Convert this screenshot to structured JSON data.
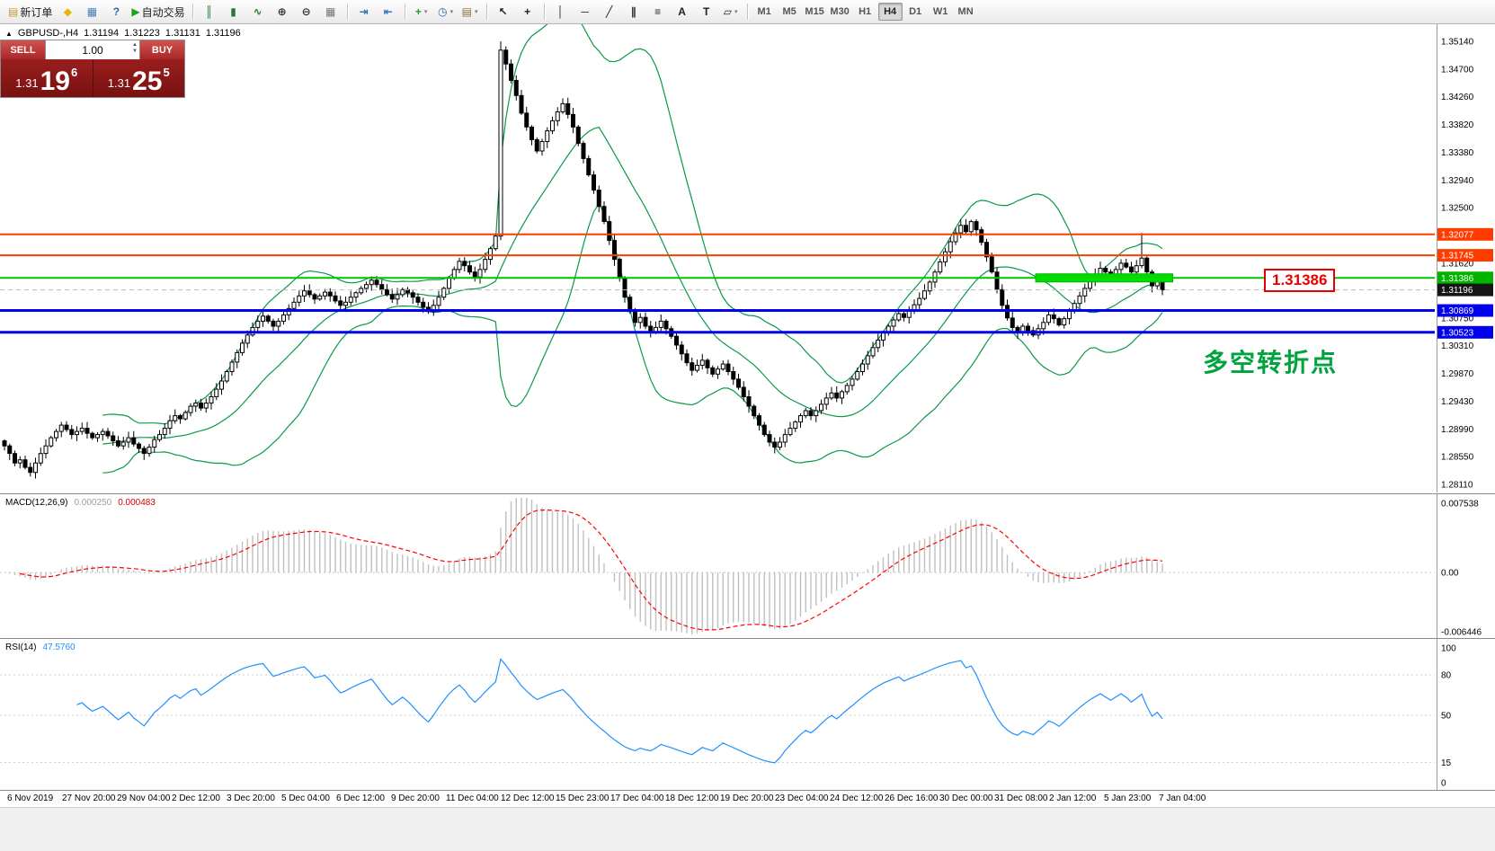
{
  "toolbar": {
    "groups": [
      {
        "items": [
          {
            "name": "new-order-button",
            "glyph": "▤",
            "color": "#c79a2e",
            "label": "新订单"
          },
          {
            "name": "metaeditor-icon",
            "glyph": "◆",
            "color": "#eab308"
          },
          {
            "name": "market-watch-icon",
            "glyph": "▦",
            "color": "#4a7ebb"
          },
          {
            "name": "help-icon",
            "glyph": "?",
            "color": "#2b6cb0"
          },
          {
            "name": "autotrading-button",
            "glyph": "▶",
            "color": "#1fa11f",
            "label": "自动交易"
          }
        ]
      },
      {
        "items": [
          {
            "name": "ohlc-bars-icon",
            "glyph": "║",
            "color": "#1f7a33"
          },
          {
            "name": "candlestick-chart-icon",
            "glyph": "▮",
            "color": "#1f7a33"
          },
          {
            "name": "line-chart-icon",
            "glyph": "∿",
            "color": "#1f7a33"
          },
          {
            "name": "zoom-in-icon",
            "glyph": "⊕",
            "color": "#333333"
          },
          {
            "name": "zoom-out-icon",
            "glyph": "⊖",
            "color": "#333333"
          },
          {
            "name": "tile-windows-icon",
            "glyph": "▦",
            "color": "#777777"
          }
        ]
      },
      {
        "items": [
          {
            "name": "auto-scroll-icon",
            "glyph": "⇥",
            "color": "#2b6cb0"
          },
          {
            "name": "chart-shift-icon",
            "glyph": "⇤",
            "color": "#2b6cb0"
          }
        ]
      },
      {
        "items": [
          {
            "name": "indicators-icon",
            "glyph": "+",
            "color": "#1fa11f",
            "dd": true
          },
          {
            "name": "periods-icon",
            "glyph": "◷",
            "color": "#2b6cb0",
            "dd": true
          },
          {
            "name": "templates-icon",
            "glyph": "▤",
            "color": "#8a6d3b",
            "dd": true
          }
        ]
      },
      {
        "items": [
          {
            "name": "cursor-icon",
            "glyph": "↖",
            "color": "#222222"
          },
          {
            "name": "crosshair-icon",
            "glyph": "+",
            "color": "#222222"
          }
        ]
      },
      {
        "items": [
          {
            "name": "vertical-line-icon",
            "glyph": "│",
            "color": "#222222"
          },
          {
            "name": "horizontal-line-icon",
            "glyph": "─",
            "color": "#222222"
          },
          {
            "name": "trendline-icon",
            "glyph": "╱",
            "color": "#222222"
          },
          {
            "name": "channel-icon",
            "glyph": "∥",
            "color": "#222222"
          },
          {
            "name": "fibonacci-icon",
            "glyph": "≡",
            "color": "#222222"
          },
          {
            "name": "text-tool-icon",
            "glyph": "A",
            "color": "#222222"
          },
          {
            "name": "label-tool-icon",
            "glyph": "T",
            "color": "#222222"
          },
          {
            "name": "shapes-icon",
            "glyph": "▱",
            "color": "#222222",
            "dd": true
          }
        ]
      }
    ],
    "timeframes": {
      "list": [
        "M1",
        "M5",
        "M15",
        "M30",
        "H1",
        "H4",
        "D1",
        "W1",
        "MN"
      ],
      "active": "H4"
    }
  },
  "symbol_header": {
    "toggle": "▲",
    "symbol": "GBPUSD-,H4",
    "open": "1.31194",
    "high": "1.31223",
    "low": "1.31131",
    "close": "1.31196"
  },
  "trade_panel": {
    "sell_label": "SELL",
    "buy_label": "BUY",
    "volume": "1.00",
    "sell": {
      "prefix": "1.31",
      "big": "19",
      "sup": "6"
    },
    "buy": {
      "prefix": "1.31",
      "big": "25",
      "sup": "5"
    }
  },
  "macd_panel": {
    "title": "MACD(12,26,9)",
    "value_main": "0.000250",
    "value_signal": "0.000483"
  },
  "rsi_panel": {
    "title": "RSI(14)",
    "value": "47.5760"
  },
  "annotation": {
    "text": "多空转折点",
    "color": "#00a33e"
  },
  "price_callout": {
    "text": "1.31386"
  },
  "chart_data": {
    "type": "candlestick",
    "symbol": "GBPUSD",
    "timeframe": "H4",
    "current_price": 1.31196,
    "open_first": 1.288,
    "closes": [
      1.2872,
      1.286,
      1.2845,
      1.285,
      1.2838,
      1.283,
      1.2845,
      1.286,
      1.2872,
      1.2885,
      1.2895,
      1.2905,
      1.2898,
      1.289,
      1.2895,
      1.29,
      1.2892,
      1.2885,
      1.289,
      1.2895,
      1.2888,
      1.288,
      1.2872,
      1.2878,
      1.2885,
      1.2875,
      1.2868,
      1.286,
      1.287,
      1.2882,
      1.289,
      1.29,
      1.2912,
      1.292,
      1.2915,
      1.2925,
      1.2935,
      1.294,
      1.2932,
      1.294,
      1.295,
      1.2962,
      1.2975,
      1.299,
      1.3005,
      1.302,
      1.3035,
      1.3048,
      1.306,
      1.307,
      1.3078,
      1.307,
      1.3062,
      1.307,
      1.308,
      1.309,
      1.31,
      1.311,
      1.3118,
      1.3112,
      1.3105,
      1.311,
      1.3116,
      1.311,
      1.3102,
      1.3095,
      1.31,
      1.3108,
      1.3115,
      1.3122,
      1.3128,
      1.3135,
      1.3128,
      1.312,
      1.3112,
      1.3105,
      1.3112,
      1.312,
      1.3115,
      1.3108,
      1.31,
      1.3092,
      1.3085,
      1.3095,
      1.3108,
      1.3122,
      1.3138,
      1.3152,
      1.3165,
      1.3158,
      1.3148,
      1.314,
      1.3152,
      1.3168,
      1.3185,
      1.3205,
      1.35,
      1.3478,
      1.3452,
      1.3428,
      1.34,
      1.3378,
      1.3358,
      1.334,
      1.3355,
      1.3372,
      1.3388,
      1.3402,
      1.3415,
      1.3398,
      1.3378,
      1.3352,
      1.3328,
      1.3302,
      1.3278,
      1.3252,
      1.3228,
      1.3198,
      1.3168,
      1.3138,
      1.3108,
      1.3085,
      1.3068,
      1.3076,
      1.3062,
      1.3052,
      1.306,
      1.307,
      1.3058,
      1.3046,
      1.3032,
      1.3018,
      1.3004,
      1.2992,
      1.3,
      1.3008,
      1.2996,
      1.2986,
      1.2994,
      1.3002,
      1.299,
      1.2978,
      1.2965,
      1.295,
      1.2935,
      1.292,
      1.2905,
      1.289,
      1.2878,
      1.287,
      1.2878,
      1.289,
      1.29,
      1.291,
      1.292,
      1.2928,
      1.292,
      1.2928,
      1.2938,
      1.2948,
      1.2956,
      1.2948,
      1.2958,
      1.2968,
      1.2978,
      1.299,
      1.3002,
      1.3015,
      1.3028,
      1.304,
      1.3052,
      1.3062,
      1.3072,
      1.3082,
      1.3076,
      1.3086,
      1.3096,
      1.3106,
      1.3118,
      1.3132,
      1.3148,
      1.3164,
      1.318,
      1.3196,
      1.321,
      1.3222,
      1.3212,
      1.3228,
      1.3215,
      1.3195,
      1.3172,
      1.3148,
      1.312,
      1.3095,
      1.3075,
      1.306,
      1.3052,
      1.3062,
      1.3055,
      1.3048,
      1.3058,
      1.3068,
      1.308,
      1.3074,
      1.3064,
      1.3074,
      1.3086,
      1.3098,
      1.311,
      1.3122,
      1.3134,
      1.3144,
      1.3154,
      1.3148,
      1.3142,
      1.3152,
      1.3162,
      1.3156,
      1.3148,
      1.3158,
      1.317,
      1.3148,
      1.3126,
      1.3136,
      1.31196
    ],
    "spikes": [
      {
        "index": 96,
        "high": 1.3514
      },
      {
        "index": 220,
        "high": 1.321
      }
    ],
    "price_axis": {
      "top_tick": 1.3514,
      "bottom_tick": 1.2811,
      "ticks": [
        "1.35140",
        "1.34700",
        "1.34260",
        "1.33820",
        "1.33380",
        "1.32940",
        "1.32500",
        "1.31620",
        "1.30750",
        "1.30310",
        "1.29870",
        "1.29430",
        "1.28990",
        "1.28550",
        "1.28110"
      ]
    },
    "overlays": {
      "bollinger": {
        "period": 20,
        "deviation": 2,
        "color": "#0a9a48"
      }
    },
    "levels": [
      {
        "price": 1.32077,
        "label": "1.32077",
        "line_color": "#ff3c00",
        "tag_color": "#ff3c00",
        "width": 2,
        "dash": false
      },
      {
        "price": 1.31745,
        "label": "1.31745",
        "line_color": "#ff3c00",
        "tag_color": "#ff3c00",
        "width": 2,
        "dash": false
      },
      {
        "price": 1.31386,
        "label": "1.31386",
        "line_color": "#00c400",
        "tag_color": "#00b400",
        "width": 2,
        "dash": false
      },
      {
        "price": 1.31196,
        "label": "1.31196",
        "line_color": "#bdbdbd",
        "tag_color": "#151515",
        "width": 1,
        "dash": true
      },
      {
        "price": 1.30869,
        "label": "1.30869",
        "line_color": "#0000ee",
        "tag_color": "#0000ee",
        "width": 3,
        "dash": false
      },
      {
        "price": 1.30523,
        "label": "1.30523",
        "line_color": "#0000ee",
        "tag_color": "#0000ee",
        "width": 3,
        "dash": false
      }
    ],
    "highlight_bar": {
      "price": 1.31386,
      "start_index": 200,
      "end_index": 226,
      "color": "#00dc00",
      "height": 9
    },
    "macd": {
      "fast": 12,
      "slow": 26,
      "signal": 9,
      "axis_max": 0.007538,
      "axis_min": -0.006446,
      "axis_labels": [
        "0.007538",
        "0.00",
        "-0.006446"
      ],
      "hist_color": "#c0c0c0",
      "signal_color": "#ff0000"
    },
    "rsi": {
      "period": 14,
      "value": 47.576,
      "color": "#1e90ff",
      "axis_labels": [
        "100",
        "80",
        "50",
        "15",
        "0"
      ],
      "levels": [
        80,
        50,
        15
      ]
    },
    "time_labels": [
      "6 Nov 2019",
      "27 Nov 20:00",
      "29 Nov 04:00",
      "2 Dec 12:00",
      "3 Dec 20:00",
      "5 Dec 04:00",
      "6 Dec 12:00",
      "9 Dec 20:00",
      "11 Dec 04:00",
      "12 Dec 12:00",
      "15 Dec 23:00",
      "17 Dec 04:00",
      "18 Dec 12:00",
      "19 Dec 20:00",
      "23 Dec 04:00",
      "24 Dec 12:00",
      "26 Dec 16:00",
      "30 Dec 00:00",
      "31 Dec 08:00",
      "2 Jan 12:00",
      "5 Jan 23:00",
      "7 Jan 04:00"
    ]
  }
}
